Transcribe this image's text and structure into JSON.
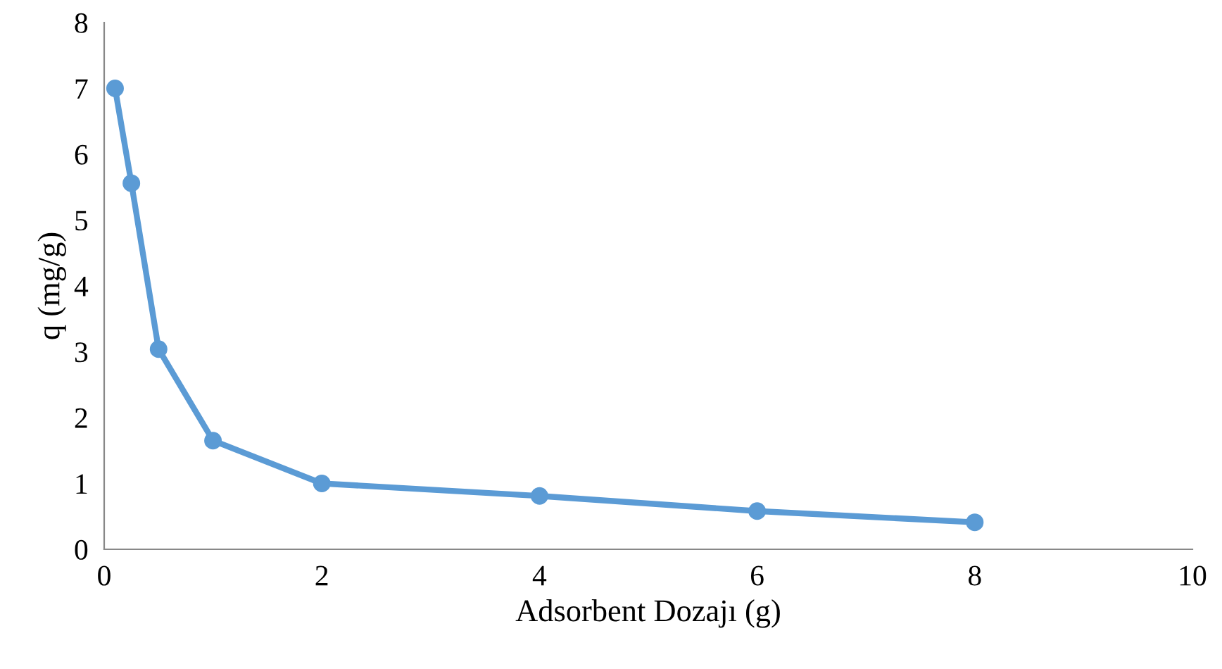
{
  "chart_data": {
    "type": "line",
    "xlabel": "Adsorbent Dozajı (g)",
    "ylabel": "q (mg/g)",
    "x": [
      0.1,
      0.25,
      0.5,
      1,
      2,
      4,
      6,
      8
    ],
    "series": [
      {
        "color": "#5b9bd5",
        "values": [
          7.0,
          5.56,
          3.04,
          1.65,
          1.0,
          0.81,
          0.58,
          0.41
        ]
      }
    ],
    "xlim": [
      0,
      10
    ],
    "xticks": [
      0,
      2,
      4,
      6,
      8,
      10
    ],
    "ylim": [
      0,
      8
    ],
    "yticks": [
      0,
      1,
      2,
      3,
      4,
      5,
      6,
      7,
      8
    ],
    "marker": "circle",
    "line_style": "solid",
    "grid": false,
    "legend": false
  }
}
